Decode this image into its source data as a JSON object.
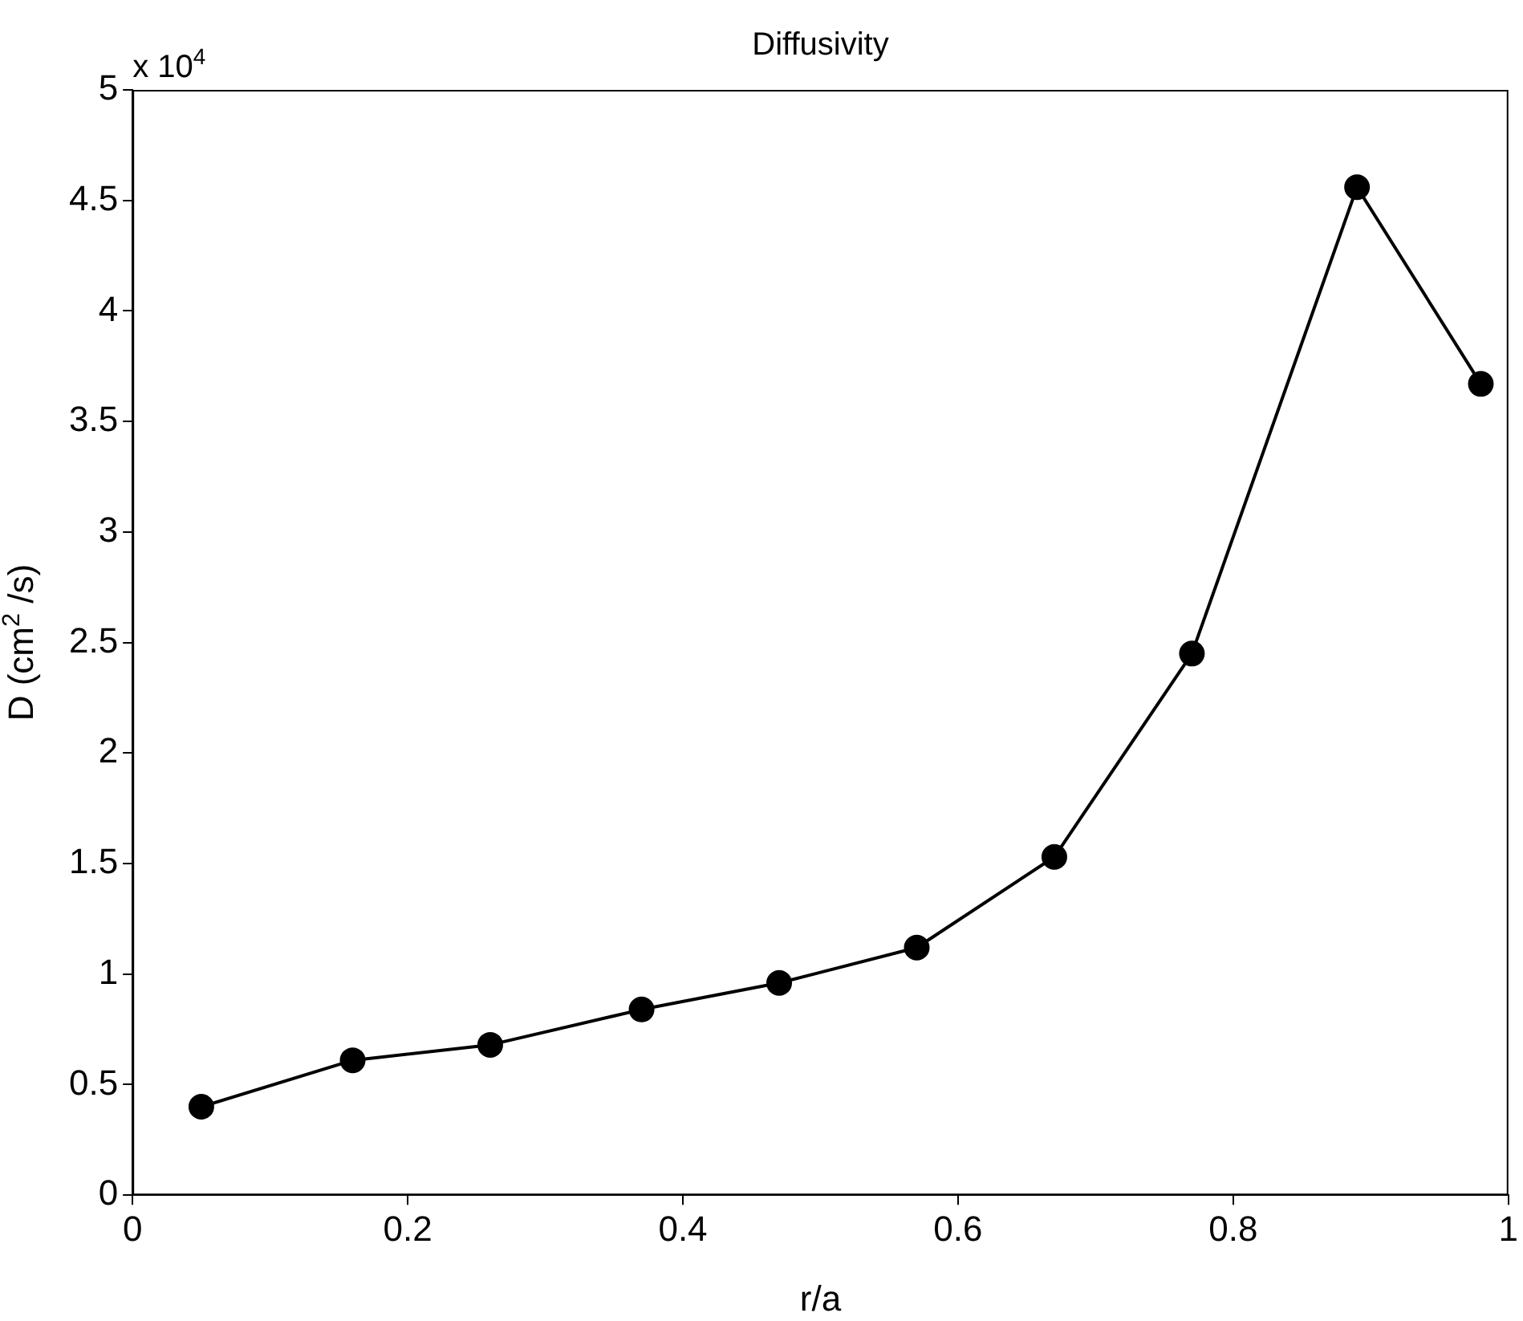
{
  "chart_data": {
    "type": "line",
    "title": "Diffusivity",
    "xlabel": "r/a",
    "ylabel": "D (cm$^{2}$ /s)",
    "annotations": [
      "x 10$^{4}$"
    ],
    "x": [
      0.05,
      0.16,
      0.26,
      0.37,
      0.47,
      0.57,
      0.67,
      0.77,
      0.89,
      0.98
    ],
    "series": [
      {
        "color": "#000000",
        "values": [
          0.4,
          0.61,
          0.68,
          0.84,
          0.96,
          1.12,
          1.53,
          2.45,
          4.56,
          3.67
        ]
      }
    ],
    "xlim": [
      0,
      1
    ],
    "xticks": [
      0,
      0.2,
      0.4,
      0.6,
      0.8,
      1
    ],
    "ylim": [
      0,
      5
    ],
    "yticks": [
      0,
      0.5,
      1,
      1.5,
      2,
      2.5,
      3,
      3.5,
      4,
      4.5,
      5
    ],
    "grid": false,
    "legend": false,
    "marker": "circle",
    "line_style": "solid"
  }
}
